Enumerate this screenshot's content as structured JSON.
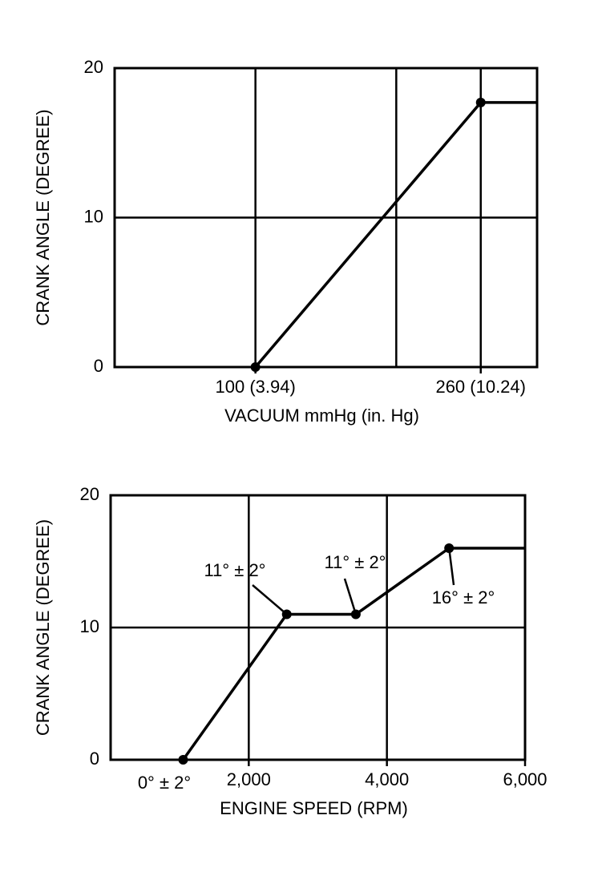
{
  "chart_data": [
    {
      "type": "line",
      "x_label": "VACUUM mmHg (in. Hg)",
      "y_label": "CRANK ANGLE (DEGREE)",
      "xlim": [
        0,
        300
      ],
      "ylim": [
        0,
        20
      ],
      "xticks": [
        {
          "value": 100,
          "label": "100 (3.94)"
        },
        {
          "value": 260,
          "label": "260 (10.24)"
        }
      ],
      "xgrid": [
        100,
        200,
        260
      ],
      "yticks": [
        0,
        10,
        20
      ],
      "grid": true,
      "series": [
        {
          "color": "#000000",
          "x": [
            100,
            260,
            300
          ],
          "values": [
            0,
            17.7,
            17.7
          ],
          "marker_indices": [
            0,
            1
          ]
        }
      ]
    },
    {
      "type": "line",
      "x_label": "ENGINE SPEED (RPM)",
      "y_label": "CRANK ANGLE (DEGREE)",
      "xlim": [
        0,
        6000
      ],
      "ylim": [
        0,
        20
      ],
      "xticks": [
        {
          "value": 2000,
          "label": "2,000"
        },
        {
          "value": 4000,
          "label": "4,000"
        },
        {
          "value": 6000,
          "label": "6,000"
        }
      ],
      "yticks": [
        0,
        10,
        20
      ],
      "grid": true,
      "series": [
        {
          "color": "#000000",
          "x": [
            1050,
            2550,
            3550,
            4900,
            6000
          ],
          "values": [
            0,
            11,
            11,
            16,
            16
          ],
          "marker_indices": [
            0,
            1,
            2,
            3
          ]
        }
      ],
      "annotations": [
        "0° ± 2°",
        "11° ± 2°",
        "11° ± 2°",
        "16° ± 2°"
      ]
    }
  ]
}
